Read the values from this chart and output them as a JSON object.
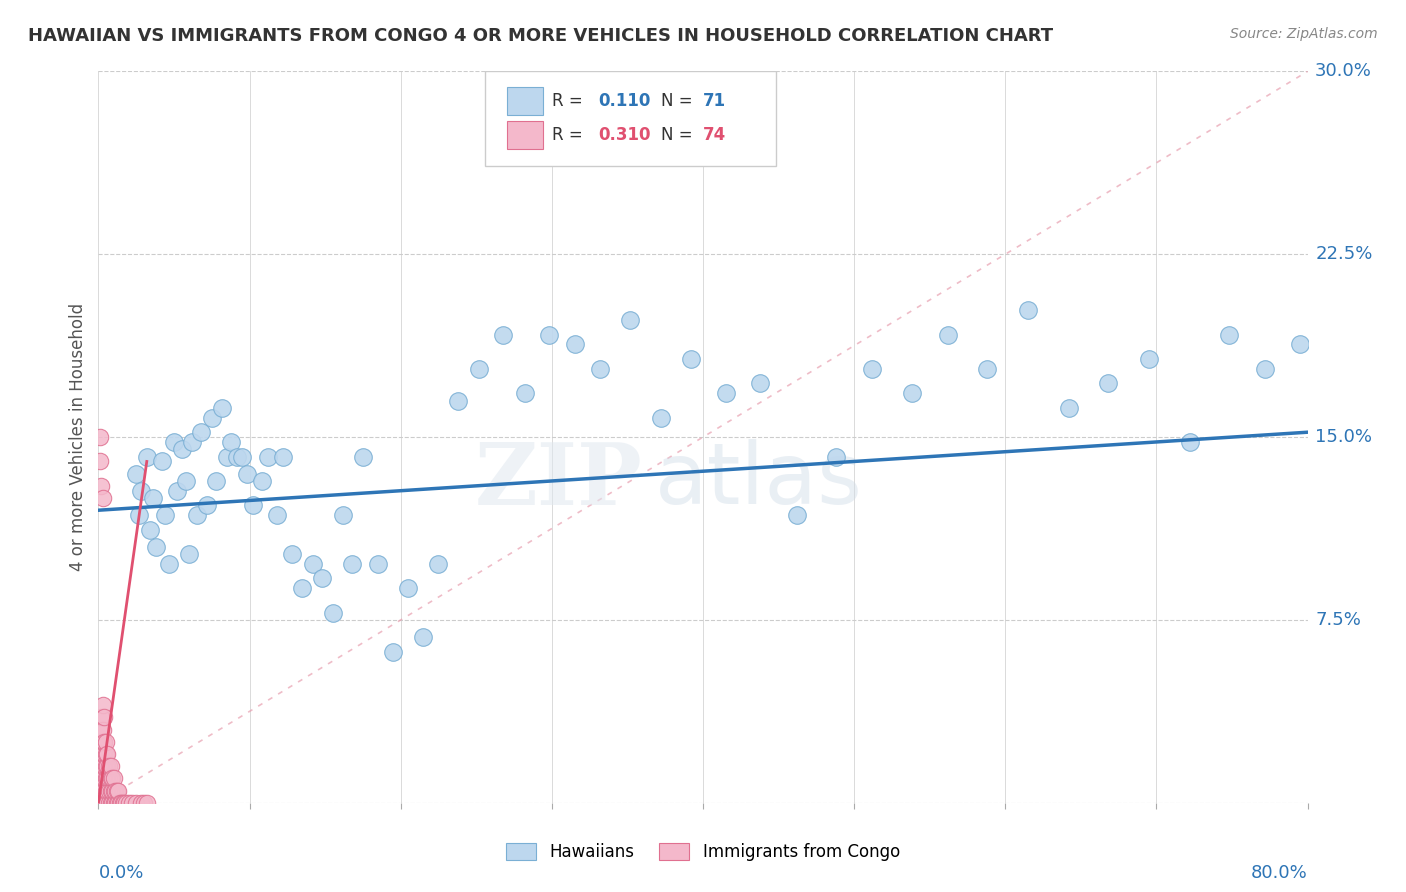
{
  "title": "HAWAIIAN VS IMMIGRANTS FROM CONGO 4 OR MORE VEHICLES IN HOUSEHOLD CORRELATION CHART",
  "source": "Source: ZipAtlas.com",
  "ylabel": "4 or more Vehicles in Household",
  "ytick_values": [
    0.0,
    0.075,
    0.15,
    0.225,
    0.3
  ],
  "xlim": [
    0,
    0.8
  ],
  "ylim": [
    0,
    0.3
  ],
  "legend_r1": "0.110",
  "legend_n1": "71",
  "legend_r2": "0.310",
  "legend_n2": "74",
  "hawaiian_color": "#bdd7ee",
  "hawaiian_edge": "#7aafd4",
  "congo_color": "#f4b8cb",
  "congo_edge": "#e07090",
  "trend_hawaiian_color": "#2e75b6",
  "trend_congo_color": "#e05070",
  "watermark_zip": "ZIP",
  "watermark_atlas": "atlas",
  "hawaiians_x": [
    0.025,
    0.027,
    0.028,
    0.032,
    0.034,
    0.036,
    0.038,
    0.042,
    0.044,
    0.047,
    0.05,
    0.052,
    0.055,
    0.058,
    0.06,
    0.062,
    0.065,
    0.068,
    0.072,
    0.075,
    0.078,
    0.082,
    0.085,
    0.088,
    0.092,
    0.095,
    0.098,
    0.102,
    0.108,
    0.112,
    0.118,
    0.122,
    0.128,
    0.135,
    0.142,
    0.148,
    0.155,
    0.162,
    0.168,
    0.175,
    0.185,
    0.195,
    0.205,
    0.215,
    0.225,
    0.238,
    0.252,
    0.268,
    0.282,
    0.298,
    0.315,
    0.332,
    0.352,
    0.372,
    0.392,
    0.415,
    0.438,
    0.462,
    0.488,
    0.512,
    0.538,
    0.562,
    0.588,
    0.615,
    0.642,
    0.668,
    0.695,
    0.722,
    0.748,
    0.772,
    0.795
  ],
  "hawaiians_y": [
    0.135,
    0.118,
    0.128,
    0.142,
    0.112,
    0.125,
    0.105,
    0.14,
    0.118,
    0.098,
    0.148,
    0.128,
    0.145,
    0.132,
    0.102,
    0.148,
    0.118,
    0.152,
    0.122,
    0.158,
    0.132,
    0.162,
    0.142,
    0.148,
    0.142,
    0.142,
    0.135,
    0.122,
    0.132,
    0.142,
    0.118,
    0.142,
    0.102,
    0.088,
    0.098,
    0.092,
    0.078,
    0.118,
    0.098,
    0.142,
    0.098,
    0.062,
    0.088,
    0.068,
    0.098,
    0.165,
    0.178,
    0.192,
    0.168,
    0.192,
    0.188,
    0.178,
    0.198,
    0.158,
    0.182,
    0.168,
    0.172,
    0.118,
    0.142,
    0.178,
    0.168,
    0.192,
    0.178,
    0.202,
    0.162,
    0.172,
    0.182,
    0.148,
    0.192,
    0.178,
    0.188
  ],
  "congos_x": [
    0.001,
    0.001,
    0.001,
    0.001,
    0.001,
    0.002,
    0.002,
    0.002,
    0.002,
    0.002,
    0.002,
    0.002,
    0.002,
    0.003,
    0.003,
    0.003,
    0.003,
    0.003,
    0.003,
    0.003,
    0.003,
    0.004,
    0.004,
    0.004,
    0.004,
    0.004,
    0.004,
    0.004,
    0.005,
    0.005,
    0.005,
    0.005,
    0.005,
    0.005,
    0.006,
    0.006,
    0.006,
    0.006,
    0.006,
    0.007,
    0.007,
    0.007,
    0.007,
    0.008,
    0.008,
    0.008,
    0.008,
    0.009,
    0.009,
    0.009,
    0.01,
    0.01,
    0.01,
    0.011,
    0.011,
    0.012,
    0.012,
    0.013,
    0.013,
    0.014,
    0.015,
    0.016,
    0.017,
    0.018,
    0.02,
    0.022,
    0.025,
    0.028,
    0.03,
    0.032,
    0.001,
    0.001,
    0.002,
    0.003
  ],
  "congos_y": [
    0.0,
    0.005,
    0.01,
    0.015,
    0.02,
    0.0,
    0.005,
    0.01,
    0.015,
    0.02,
    0.025,
    0.03,
    0.035,
    0.0,
    0.005,
    0.01,
    0.015,
    0.02,
    0.025,
    0.03,
    0.04,
    0.0,
    0.005,
    0.01,
    0.015,
    0.02,
    0.025,
    0.035,
    0.0,
    0.005,
    0.01,
    0.015,
    0.02,
    0.025,
    0.0,
    0.005,
    0.01,
    0.015,
    0.02,
    0.0,
    0.005,
    0.01,
    0.015,
    0.0,
    0.005,
    0.01,
    0.015,
    0.0,
    0.005,
    0.01,
    0.0,
    0.005,
    0.01,
    0.0,
    0.005,
    0.0,
    0.005,
    0.0,
    0.005,
    0.0,
    0.0,
    0.0,
    0.0,
    0.0,
    0.0,
    0.0,
    0.0,
    0.0,
    0.0,
    0.0,
    0.15,
    0.14,
    0.13,
    0.125
  ],
  "hawaiian_trend": [
    0.0,
    0.8,
    0.12,
    0.152
  ],
  "congo_trend": [
    0.0,
    0.032,
    0.0,
    0.14
  ],
  "diag_line": [
    0.0,
    0.8,
    0.0,
    0.3
  ]
}
